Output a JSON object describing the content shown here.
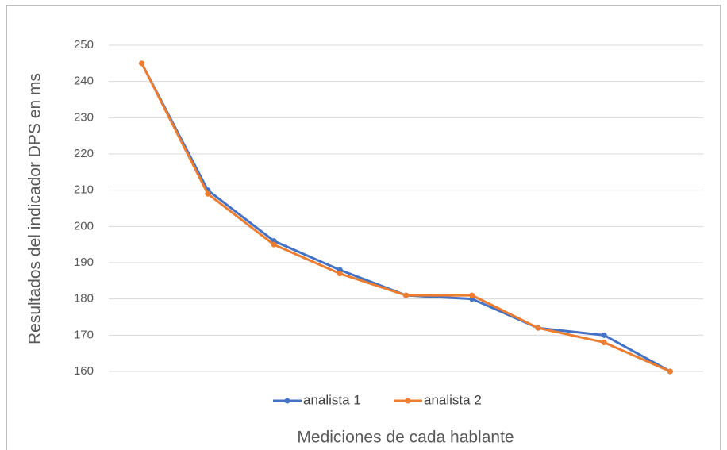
{
  "chart_data": {
    "type": "line",
    "x_label": "Mediciones de cada hablante",
    "y_label": "Resultados del indicador DPS en ms",
    "categories": [
      null,
      null,
      null,
      null,
      null,
      null,
      null,
      null,
      null
    ],
    "series": [
      {
        "name": "analista 1",
        "color": "#4472c4",
        "values": [
          245,
          210,
          196,
          188,
          181,
          180,
          172,
          170,
          160
        ]
      },
      {
        "name": "analista 2",
        "color": "#ed7d31",
        "values": [
          245,
          209,
          195,
          187,
          181,
          181,
          172,
          168,
          160
        ]
      }
    ],
    "ylim": [
      160,
      250
    ],
    "yticks": [
      160,
      170,
      180,
      190,
      200,
      210,
      220,
      230,
      240,
      250
    ],
    "grid": true
  }
}
